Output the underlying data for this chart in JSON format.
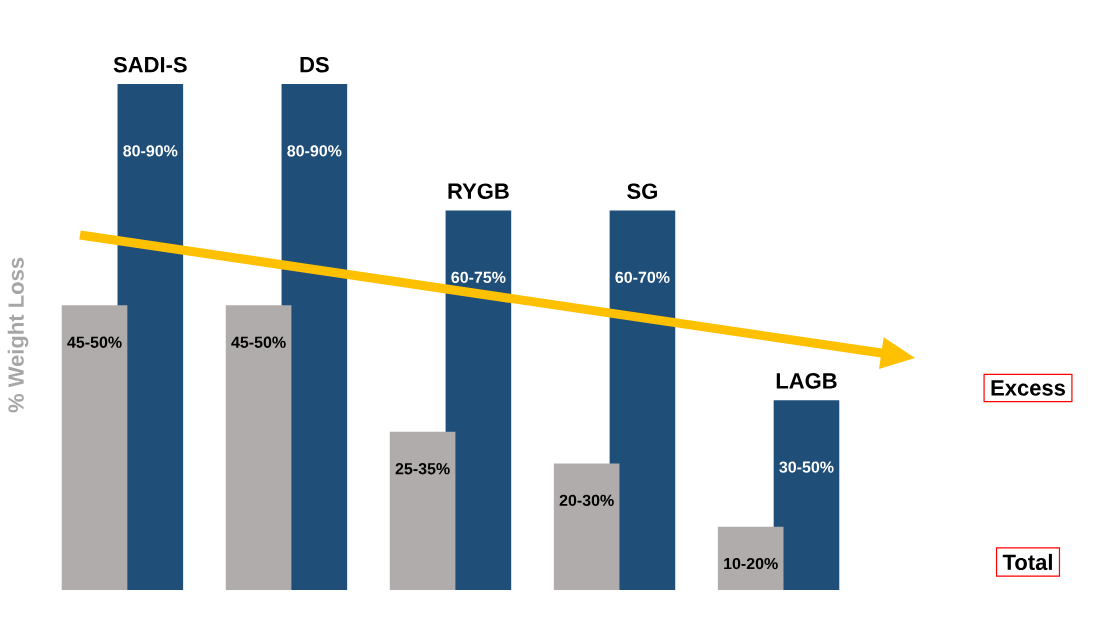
{
  "chart_data": {
    "type": "bar",
    "ylabel": "% Weight Loss",
    "categories": [
      "SADI-S",
      "DS",
      "RYGB",
      "SG",
      "LAGB"
    ],
    "series": [
      {
        "name": "Excess",
        "color": "#1f4e79",
        "values": [
          80,
          80,
          60,
          60,
          30
        ],
        "value_labels": [
          "80-90%",
          "80-90%",
          "60-75%",
          "60-70%",
          "30-50%"
        ]
      },
      {
        "name": "Total",
        "color": "#b0acab",
        "values": [
          45,
          45,
          25,
          20,
          10
        ],
        "value_labels": [
          "45-50%",
          "45-50%",
          "25-35%",
          "20-30%",
          "10-20%"
        ]
      }
    ],
    "legend": "right"
  }
}
